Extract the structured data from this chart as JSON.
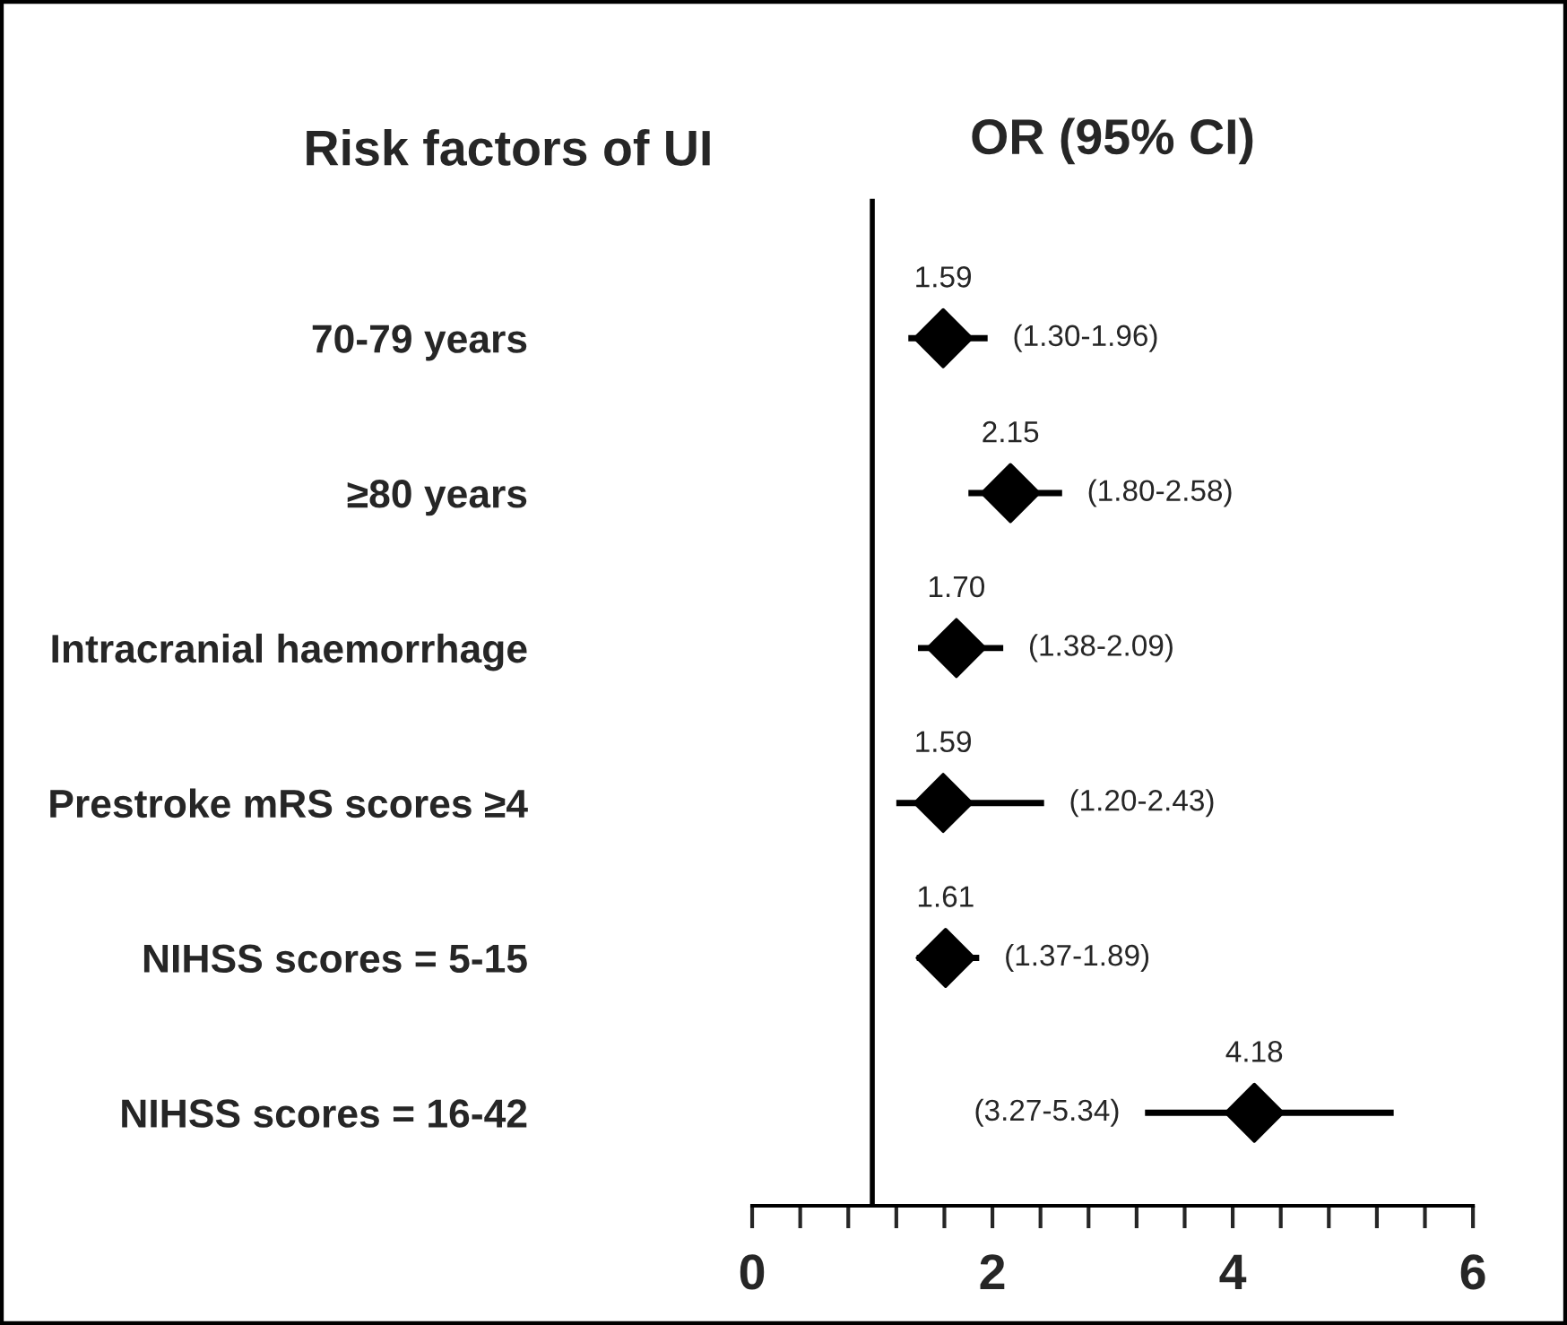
{
  "chart_data": {
    "type": "scatter",
    "orientation": "horizontal",
    "title": "OR (95% CI)",
    "ylabel": "Risk factors of UI",
    "categories": [
      "70-79 years",
      "≥80 years",
      "Intracranial haemorrhage",
      "Prestroke mRS scores ≥4",
      "NIHSS scores = 5-15",
      "NIHSS scores = 16-42"
    ],
    "values": [
      1.59,
      2.15,
      1.7,
      1.59,
      1.61,
      4.18
    ],
    "errors": [
      [
        1.3,
        1.96
      ],
      [
        1.8,
        2.58
      ],
      [
        1.38,
        2.09
      ],
      [
        1.2,
        2.43
      ],
      [
        1.37,
        1.89
      ],
      [
        3.27,
        5.34
      ]
    ],
    "color": "#000000",
    "marker": "diamond",
    "value_labels": [
      "1.59",
      "2.15",
      "1.70",
      "1.59",
      "1.61",
      "4.18"
    ],
    "annotations": [
      "(1.30-1.96)",
      "(1.80-2.58)",
      "(1.38-2.09)",
      "(1.20-2.43)",
      "(1.37-1.89)",
      "(3.27-5.34)"
    ],
    "ref_lines": [
      {
        "axis": "x",
        "value": 1,
        "color": "#000000"
      }
    ],
    "xlim": [
      0,
      6
    ],
    "xticks": [
      0,
      {
        "value": 0.4,
        "label": null
      },
      {
        "value": 0.8,
        "label": null
      },
      {
        "value": 1.2,
        "label": null
      },
      {
        "value": 1.6,
        "label": null
      },
      2,
      {
        "value": 2.4,
        "label": null
      },
      {
        "value": 2.8,
        "label": null
      },
      {
        "value": 3.2,
        "label": null
      },
      {
        "value": 3.6,
        "label": null
      },
      4,
      {
        "value": 4.4,
        "label": null
      },
      {
        "value": 4.8,
        "label": null
      },
      {
        "value": 5.2,
        "label": null
      },
      {
        "value": 5.6,
        "label": null
      },
      6
    ],
    "grid": false,
    "legend": false
  }
}
